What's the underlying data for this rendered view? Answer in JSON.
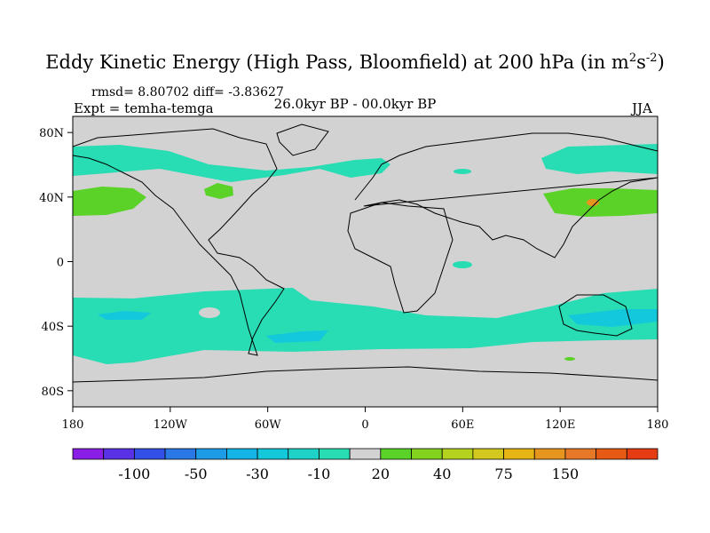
{
  "title": {
    "main": "Eddy Kinetic Energy (High Pass, Bloomfield) at 200 hPa (in m",
    "exp1": "2",
    "mid": "s",
    "exp2": "-2",
    "end": ")"
  },
  "stats": "rmsd= 8.80702 diff= -3.83627",
  "experiment": "Expt = temha-temga",
  "period": "26.0kyr BP - 00.0kyr BP",
  "season": "JJA",
  "axes": {
    "lat_labels": [
      "80N",
      "40N",
      "0",
      "40S",
      "80S"
    ],
    "lon_labels": [
      "180",
      "120W",
      "60W",
      "0",
      "60E",
      "120E",
      "180"
    ]
  },
  "colorbar": {
    "colors": [
      "#8a1ee6",
      "#5a32e6",
      "#3250e6",
      "#2a78e6",
      "#1e9be6",
      "#14b4e6",
      "#14c8dc",
      "#1ed2c8",
      "#28dcb4",
      "#d2d2d2",
      "#5ad228",
      "#82d21e",
      "#b4d21e",
      "#d2c81e",
      "#e6b414",
      "#e6961e",
      "#e67828",
      "#e65a14",
      "#e63c14"
    ],
    "labels": [
      "-100",
      "-50",
      "-30",
      "-10",
      "20",
      "40",
      "75",
      "150"
    ]
  },
  "legend_colors": {
    "neutral": "#d2d2d2",
    "negative_10": "#28dcb4",
    "negative_30": "#14c8dc",
    "positive_20": "#5ad228",
    "positive_75": "#e6961e"
  }
}
